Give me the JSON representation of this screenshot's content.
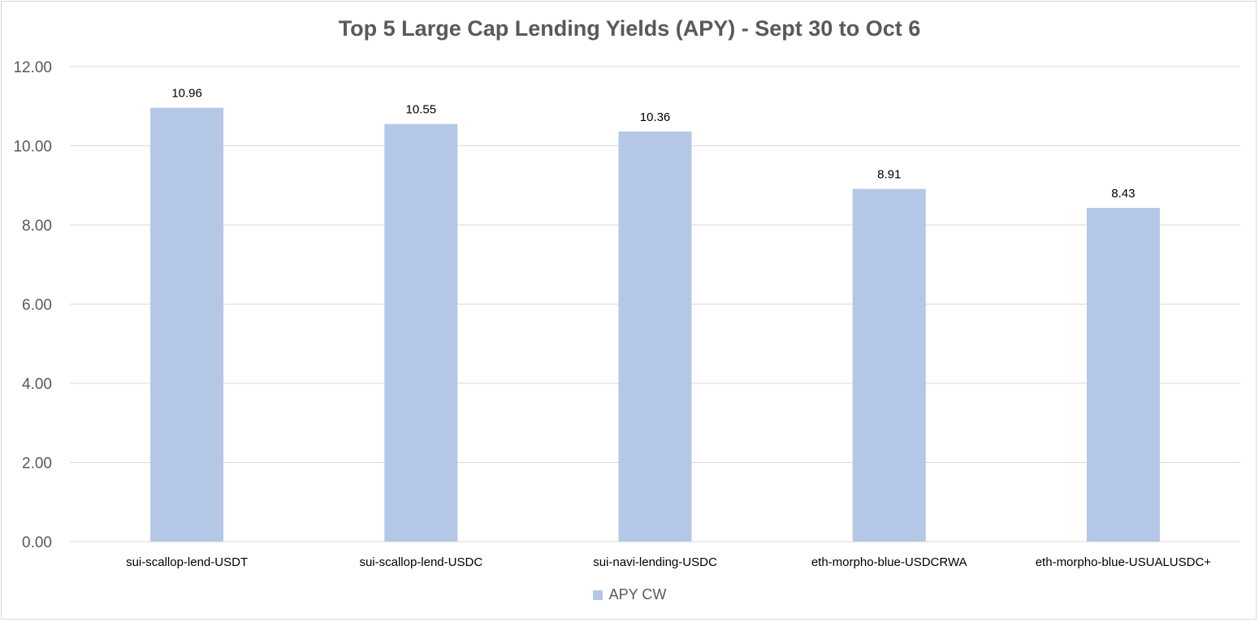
{
  "chart_data": {
    "type": "bar",
    "title": "Top 5 Large Cap Lending Yields (APY) - Sept 30 to Oct 6",
    "xlabel": "",
    "ylabel": "",
    "categories": [
      "sui-scallop-lend-USDT",
      "sui-scallop-lend-USDC",
      "sui-navi-lending-USDC",
      "eth-morpho-blue-USDCRWA",
      "eth-morpho-blue-USUALUSDC+"
    ],
    "series": [
      {
        "name": "APY CW",
        "values": [
          10.96,
          10.55,
          10.36,
          8.91,
          8.43
        ],
        "color": "#b4c7e7"
      }
    ],
    "data_labels": [
      "10.96",
      "10.55",
      "10.36",
      "8.91",
      "8.43"
    ],
    "ylim": [
      0,
      12
    ],
    "y_ticks": [
      0,
      2,
      4,
      6,
      8,
      10,
      12
    ],
    "y_tick_labels": [
      "0.00",
      "2.00",
      "4.00",
      "6.00",
      "8.00",
      "10.00",
      "12.00"
    ],
    "grid": true,
    "legend_position": "bottom",
    "gridline_color": "#d9d9d9"
  }
}
